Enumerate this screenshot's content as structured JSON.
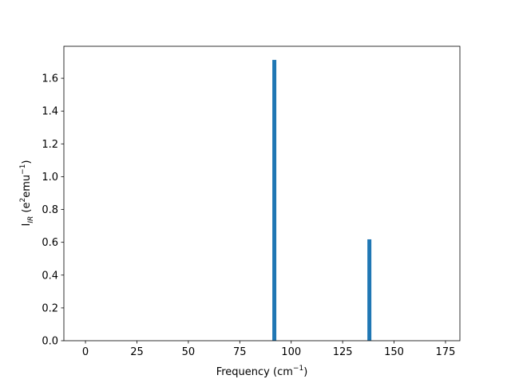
{
  "chart_data": {
    "type": "bar",
    "x": [
      91.8,
      138
    ],
    "values": [
      1.712,
      0.618
    ],
    "color": "#1f77b4",
    "xlim": [
      -10.5,
      182
    ],
    "ylim": [
      0,
      1.795
    ],
    "xticks": [
      0,
      25,
      50,
      75,
      100,
      125,
      150,
      175
    ],
    "yticks": [
      {
        "value": 0,
        "label": "0.0"
      },
      {
        "value": 0.2,
        "label": "0.2"
      },
      {
        "value": 0.4,
        "label": "0.4"
      },
      {
        "value": 0.6,
        "label": "0.6"
      },
      {
        "value": 0.8,
        "label": "0.8"
      },
      {
        "value": 1.0,
        "label": "1.0"
      },
      {
        "value": 1.2,
        "label": "1.2"
      },
      {
        "value": 1.4,
        "label": "1.4"
      },
      {
        "value": 1.6,
        "label": "1.6"
      }
    ],
    "xlabel": {
      "text": "Frequency (cm",
      "sup": "−1",
      "end": ")"
    },
    "ylabel": {
      "base": "I",
      "sub": "IR",
      "open": " (e",
      "sup1": "2",
      "mid": "emu",
      "sup2": "−1",
      "end": ")"
    }
  }
}
